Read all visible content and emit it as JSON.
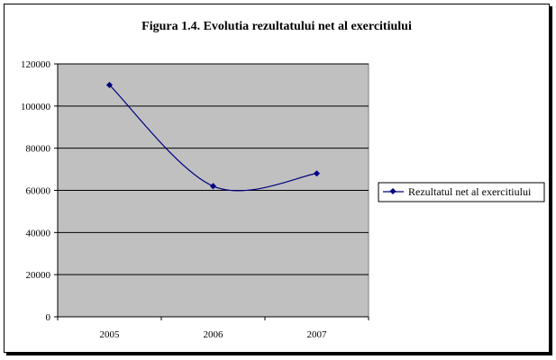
{
  "chart_data": {
    "type": "line",
    "title": "Figura 1.4. Evolutia rezultatului net al exercitiului",
    "xlabel": "",
    "ylabel": "",
    "categories": [
      "2005",
      "2006",
      "2007"
    ],
    "series": [
      {
        "name": "Rezultatul net al exercitiului",
        "values": [
          110000,
          62000,
          68000
        ],
        "color": "#000080"
      }
    ],
    "ylim": [
      0,
      120000
    ],
    "yticks": [
      0,
      20000,
      40000,
      60000,
      80000,
      100000,
      120000
    ],
    "ytick_labels": [
      "0",
      "20000",
      "40000",
      "60000",
      "80000",
      "100000",
      "120000"
    ],
    "grid": true,
    "smooth": true,
    "plot_background": "#c0c0c0",
    "legend_position": "right"
  }
}
